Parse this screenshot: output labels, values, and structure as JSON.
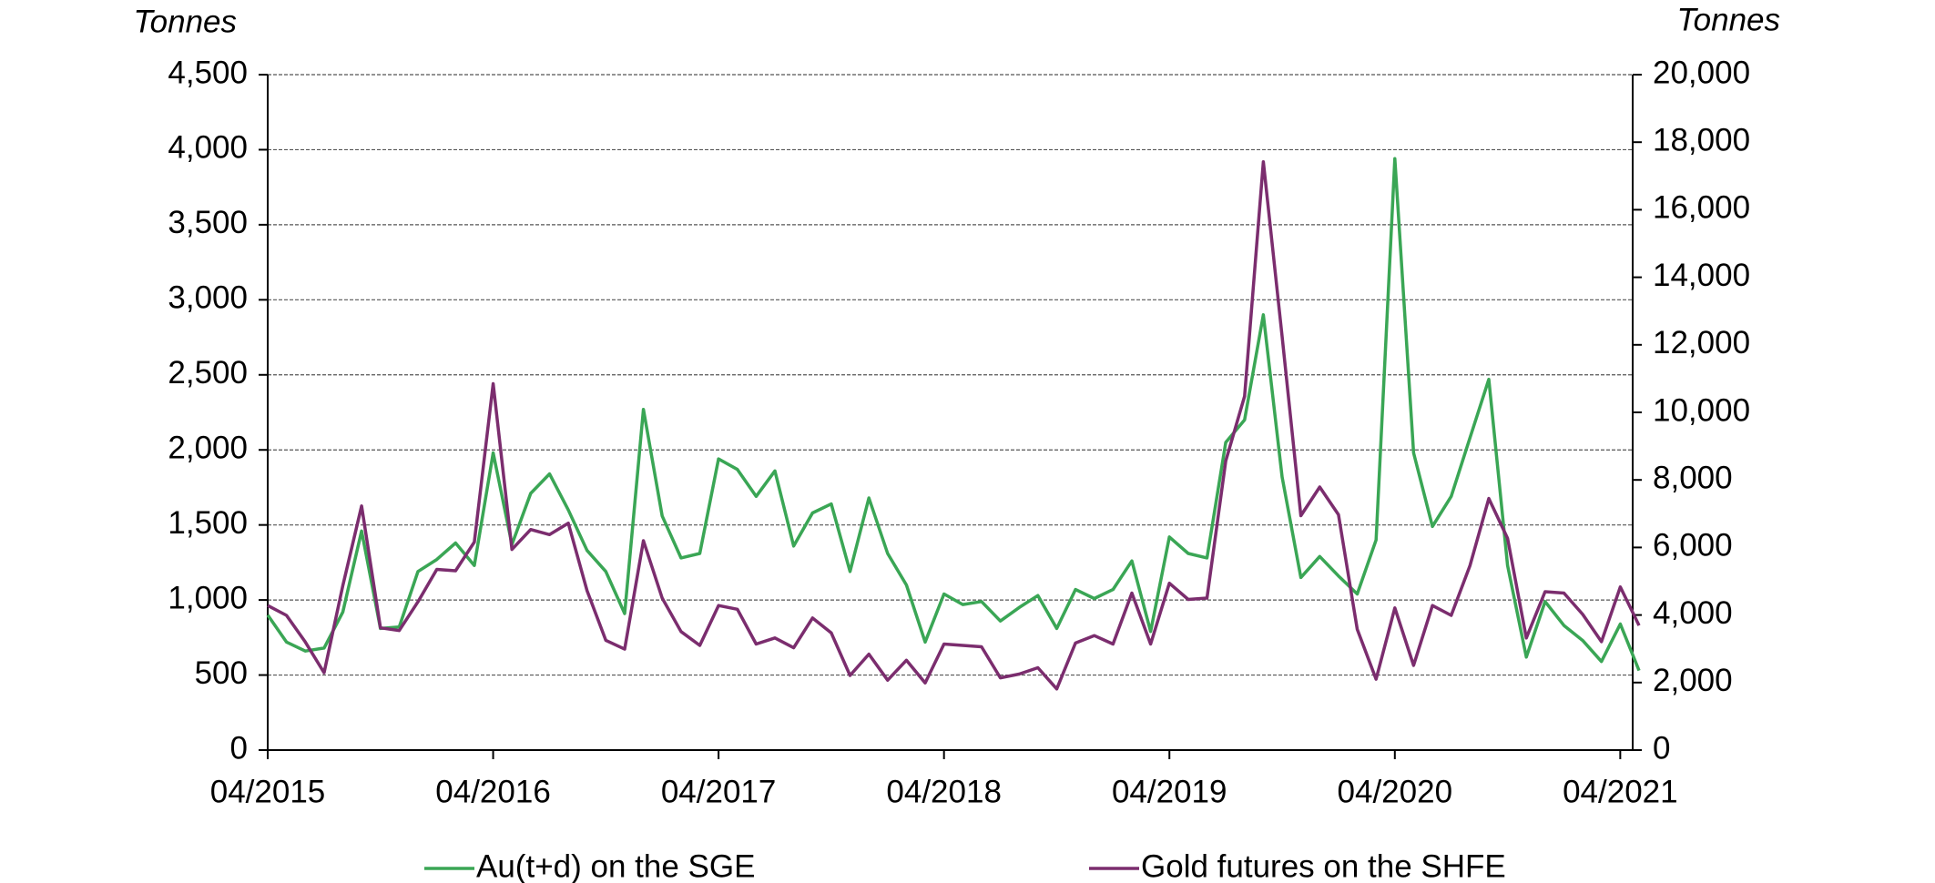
{
  "chart_data": {
    "type": "line",
    "y_label": "Tonnes",
    "y2_label": "Tonnes",
    "x": [
      "2015-04",
      "2015-05",
      "2015-06",
      "2015-07",
      "2015-08",
      "2015-09",
      "2015-10",
      "2015-11",
      "2015-12",
      "2016-01",
      "2016-02",
      "2016-03",
      "2016-04",
      "2016-05",
      "2016-06",
      "2016-07",
      "2016-08",
      "2016-09",
      "2016-10",
      "2016-11",
      "2016-12",
      "2017-01",
      "2017-02",
      "2017-03",
      "2017-04",
      "2017-05",
      "2017-06",
      "2017-07",
      "2017-08",
      "2017-09",
      "2017-10",
      "2017-11",
      "2017-12",
      "2018-01",
      "2018-02",
      "2018-03",
      "2018-04",
      "2018-05",
      "2018-06",
      "2018-07",
      "2018-08",
      "2018-09",
      "2018-10",
      "2018-11",
      "2018-12",
      "2019-01",
      "2019-02",
      "2019-03",
      "2019-04",
      "2019-05",
      "2019-06",
      "2019-07",
      "2019-08",
      "2019-09",
      "2019-10",
      "2019-11",
      "2019-12",
      "2020-01",
      "2020-02",
      "2020-03",
      "2020-04",
      "2020-05",
      "2020-06",
      "2020-07",
      "2020-08",
      "2020-09",
      "2020-10",
      "2020-11",
      "2020-12",
      "2021-01",
      "2021-02",
      "2021-03",
      "2021-04",
      "2021-05"
    ],
    "xticks": [
      {
        "value": "2015-04",
        "label": "04/2015"
      },
      {
        "value": "2016-04",
        "label": "04/2016"
      },
      {
        "value": "2017-04",
        "label": "04/2017"
      },
      {
        "value": "2018-04",
        "label": "04/2018"
      },
      {
        "value": "2019-04",
        "label": "04/2019"
      },
      {
        "value": "2020-04",
        "label": "04/2020"
      },
      {
        "value": "2021-04",
        "label": "04/2021"
      }
    ],
    "ylim": [
      0,
      4500
    ],
    "yticks": [
      0,
      500,
      {
        "value": 1000,
        "label": "1,000"
      },
      {
        "value": 1500,
        "label": "1,500"
      },
      {
        "value": 2000,
        "label": "2,000"
      },
      {
        "value": 2500,
        "label": "2,500"
      },
      {
        "value": 3000,
        "label": "3,000"
      },
      {
        "value": 3500,
        "label": "3,500"
      },
      {
        "value": 4000,
        "label": "4,000"
      },
      {
        "value": 4500,
        "label": "4,500"
      }
    ],
    "y2lim": [
      0,
      20000
    ],
    "y2ticks": [
      0,
      {
        "value": 2000,
        "label": "2,000"
      },
      {
        "value": 4000,
        "label": "4,000"
      },
      {
        "value": 6000,
        "label": "6,000"
      },
      {
        "value": 8000,
        "label": "8,000"
      },
      {
        "value": 10000,
        "label": "10,000"
      },
      {
        "value": 12000,
        "label": "12,000"
      },
      {
        "value": 14000,
        "label": "14,000"
      },
      {
        "value": 16000,
        "label": "16,000"
      },
      {
        "value": 18000,
        "label": "18,000"
      },
      {
        "value": 20000,
        "label": "20,000"
      }
    ],
    "grid": true,
    "legend": "bottom",
    "series": [
      {
        "name": "Au(t+d) on the SGE",
        "color": "#3aa655",
        "axis": "y",
        "values": [
          900,
          720,
          660,
          680,
          920,
          1460,
          810,
          820,
          1190,
          1270,
          1380,
          1230,
          1980,
          1370,
          1710,
          1840,
          1600,
          1330,
          1190,
          910,
          2270,
          1560,
          1280,
          1310,
          1940,
          1870,
          1690,
          1860,
          1360,
          1580,
          1640,
          1190,
          1680,
          1310,
          1100,
          720,
          1040,
          970,
          990,
          860,
          950,
          1030,
          810,
          1070,
          1010,
          1070,
          1260,
          790,
          1420,
          1310,
          1280,
          2050,
          2200,
          2900,
          1820,
          1150,
          1290,
          1160,
          1040,
          1400,
          3940,
          1980,
          1490,
          1690,
          2080,
          2470,
          1230,
          620,
          990,
          830,
          730,
          590,
          840,
          530
        ]
      },
      {
        "name": "Gold futures on the SHFE",
        "color": "#7b2d6e",
        "axis": "y2",
        "values": [
          4280,
          3990,
          3200,
          2290,
          4870,
          7230,
          3620,
          3540,
          4390,
          5350,
          5310,
          6160,
          10850,
          5940,
          6530,
          6380,
          6720,
          4720,
          3250,
          2990,
          6200,
          4500,
          3510,
          3100,
          4280,
          4170,
          3140,
          3320,
          3030,
          3910,
          3470,
          2210,
          2840,
          2070,
          2660,
          1990,
          3140,
          3100,
          3060,
          2140,
          2250,
          2440,
          1810,
          3170,
          3390,
          3140,
          4650,
          3140,
          4940,
          4460,
          4500,
          8560,
          10480,
          17420,
          12250,
          6940,
          7790,
          6970,
          3580,
          2100,
          4210,
          2510,
          4280,
          3990,
          5460,
          7450,
          6270,
          3320,
          4690,
          4650,
          4020,
          3210,
          4830,
          3690
        ]
      }
    ]
  }
}
